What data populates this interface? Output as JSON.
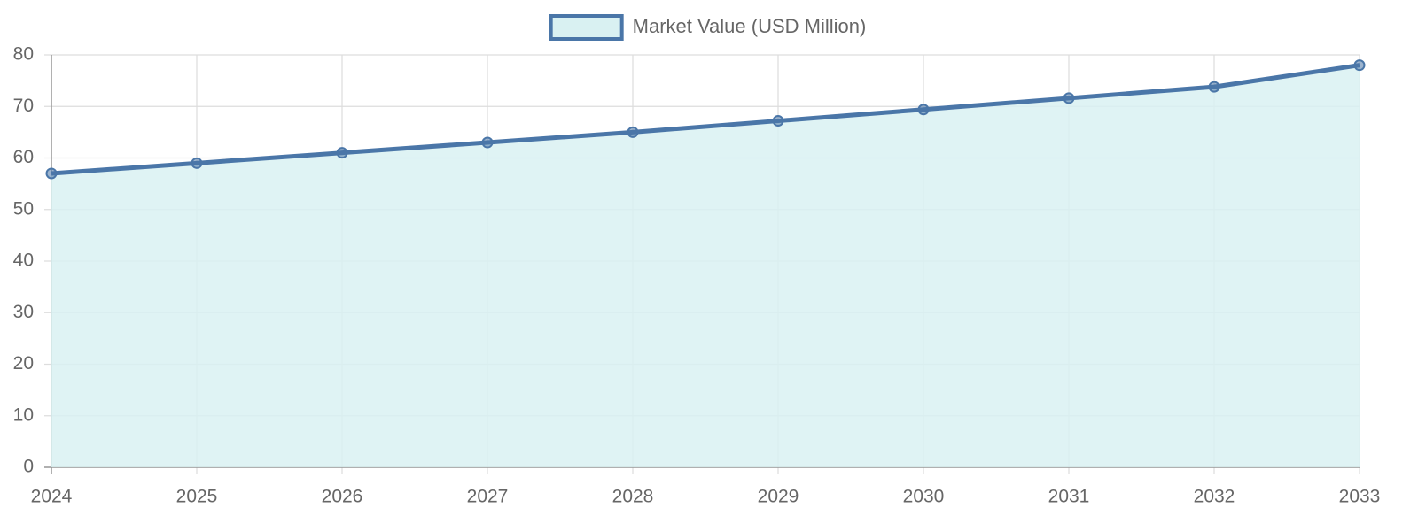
{
  "chart_data": {
    "type": "area",
    "categories": [
      "2024",
      "2025",
      "2026",
      "2027",
      "2028",
      "2029",
      "2030",
      "2031",
      "2032",
      "2033"
    ],
    "series": [
      {
        "name": "Market Value (USD Million)",
        "color": "#4a76a8",
        "fill_color": "#d9f1f2",
        "values": [
          57,
          59,
          61,
          63,
          65,
          67.2,
          69.4,
          71.6,
          73.8,
          78
        ]
      }
    ],
    "ylim": [
      0,
      80
    ],
    "yticks": [
      0,
      10,
      20,
      30,
      40,
      50,
      60,
      70,
      80
    ],
    "grid": true,
    "legend": "top"
  }
}
